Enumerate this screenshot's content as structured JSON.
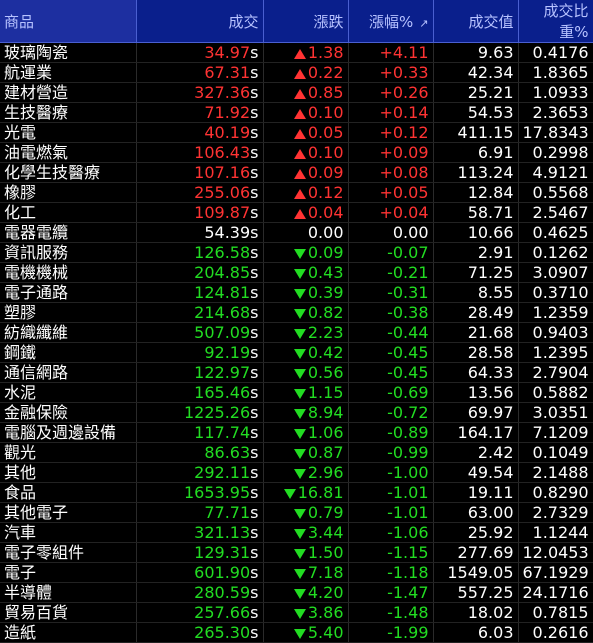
{
  "header": {
    "name": "商品",
    "price": "成交",
    "change": "漲跌",
    "pct": "漲幅%",
    "sort_glyph": "↗",
    "amount": "成交值",
    "weight": "成交比重%"
  },
  "colors": {
    "up": "#ff3333",
    "down": "#22dd22",
    "header_bg": "#0a1f8c"
  },
  "rows": [
    {
      "name": "玻璃陶瓷",
      "price": "34.97",
      "dir": "up",
      "change": "1.38",
      "pct": "+4.11",
      "amount": "9.63",
      "weight": "0.4176"
    },
    {
      "name": "航運業",
      "price": "67.31",
      "dir": "up",
      "change": "0.22",
      "pct": "+0.33",
      "amount": "42.34",
      "weight": "1.8365"
    },
    {
      "name": "建材營造",
      "price": "327.36",
      "dir": "up",
      "change": "0.85",
      "pct": "+0.26",
      "amount": "25.21",
      "weight": "1.0933"
    },
    {
      "name": "生技醫療",
      "price": "71.92",
      "dir": "up",
      "change": "0.10",
      "pct": "+0.14",
      "amount": "54.53",
      "weight": "2.3653"
    },
    {
      "name": "光電",
      "price": "40.19",
      "dir": "up",
      "change": "0.05",
      "pct": "+0.12",
      "amount": "411.15",
      "weight": "17.8343"
    },
    {
      "name": "油電燃氣",
      "price": "106.43",
      "dir": "up",
      "change": "0.10",
      "pct": "+0.09",
      "amount": "6.91",
      "weight": "0.2998"
    },
    {
      "name": "化學生技醫療",
      "price": "107.16",
      "dir": "up",
      "change": "0.09",
      "pct": "+0.08",
      "amount": "113.24",
      "weight": "4.9121"
    },
    {
      "name": "橡膠",
      "price": "255.06",
      "dir": "up",
      "change": "0.12",
      "pct": "+0.05",
      "amount": "12.84",
      "weight": "0.5568"
    },
    {
      "name": "化工",
      "price": "109.87",
      "dir": "up",
      "change": "0.04",
      "pct": "+0.04",
      "amount": "58.71",
      "weight": "2.5467"
    },
    {
      "name": "電器電纜",
      "price": "54.39",
      "dir": "flat",
      "change": "0.00",
      "pct": "0.00",
      "amount": "10.66",
      "weight": "0.4625"
    },
    {
      "name": "資訊服務",
      "price": "126.58",
      "dir": "down",
      "change": "0.09",
      "pct": "-0.07",
      "amount": "2.91",
      "weight": "0.1262"
    },
    {
      "name": "電機機械",
      "price": "204.85",
      "dir": "down",
      "change": "0.43",
      "pct": "-0.21",
      "amount": "71.25",
      "weight": "3.0907"
    },
    {
      "name": "電子通路",
      "price": "124.81",
      "dir": "down",
      "change": "0.39",
      "pct": "-0.31",
      "amount": "8.55",
      "weight": "0.3710"
    },
    {
      "name": "塑膠",
      "price": "214.68",
      "dir": "down",
      "change": "0.82",
      "pct": "-0.38",
      "amount": "28.49",
      "weight": "1.2359"
    },
    {
      "name": "紡織纖維",
      "price": "507.09",
      "dir": "down",
      "change": "2.23",
      "pct": "-0.44",
      "amount": "21.68",
      "weight": "0.9403"
    },
    {
      "name": "鋼鐵",
      "price": "92.19",
      "dir": "down",
      "change": "0.42",
      "pct": "-0.45",
      "amount": "28.58",
      "weight": "1.2395"
    },
    {
      "name": "通信網路",
      "price": "122.97",
      "dir": "down",
      "change": "0.56",
      "pct": "-0.45",
      "amount": "64.33",
      "weight": "2.7904"
    },
    {
      "name": "水泥",
      "price": "165.46",
      "dir": "down",
      "change": "1.15",
      "pct": "-0.69",
      "amount": "13.56",
      "weight": "0.5882"
    },
    {
      "name": "金融保險",
      "price": "1225.26",
      "dir": "down",
      "change": "8.94",
      "pct": "-0.72",
      "amount": "69.97",
      "weight": "3.0351"
    },
    {
      "name": "電腦及週邊設備",
      "price": "117.74",
      "dir": "down",
      "change": "1.06",
      "pct": "-0.89",
      "amount": "164.17",
      "weight": "7.1209"
    },
    {
      "name": "觀光",
      "price": "86.63",
      "dir": "down",
      "change": "0.87",
      "pct": "-0.99",
      "amount": "2.42",
      "weight": "0.1049"
    },
    {
      "name": "其他",
      "price": "292.11",
      "dir": "down",
      "change": "2.96",
      "pct": "-1.00",
      "amount": "49.54",
      "weight": "2.1488"
    },
    {
      "name": "食品",
      "price": "1653.95",
      "dir": "down",
      "change": "16.81",
      "pct": "-1.01",
      "amount": "19.11",
      "weight": "0.8290"
    },
    {
      "name": "其他電子",
      "price": "77.71",
      "dir": "down",
      "change": "0.79",
      "pct": "-1.01",
      "amount": "63.00",
      "weight": "2.7329"
    },
    {
      "name": "汽車",
      "price": "321.13",
      "dir": "down",
      "change": "3.44",
      "pct": "-1.06",
      "amount": "25.92",
      "weight": "1.1244"
    },
    {
      "name": "電子零組件",
      "price": "129.31",
      "dir": "down",
      "change": "1.50",
      "pct": "-1.15",
      "amount": "277.69",
      "weight": "12.0453"
    },
    {
      "name": "電子",
      "price": "601.90",
      "dir": "down",
      "change": "7.18",
      "pct": "-1.18",
      "amount": "1549.05",
      "weight": "67.1929"
    },
    {
      "name": "半導體",
      "price": "280.59",
      "dir": "down",
      "change": "4.20",
      "pct": "-1.47",
      "amount": "557.25",
      "weight": "24.1716"
    },
    {
      "name": "貿易百貨",
      "price": "257.66",
      "dir": "down",
      "change": "3.86",
      "pct": "-1.48",
      "amount": "18.02",
      "weight": "0.7815"
    },
    {
      "name": "造紙",
      "price": "265.30",
      "dir": "down",
      "change": "5.40",
      "pct": "-1.99",
      "amount": "6.03",
      "weight": "0.2616"
    }
  ],
  "price_suffix": "s"
}
